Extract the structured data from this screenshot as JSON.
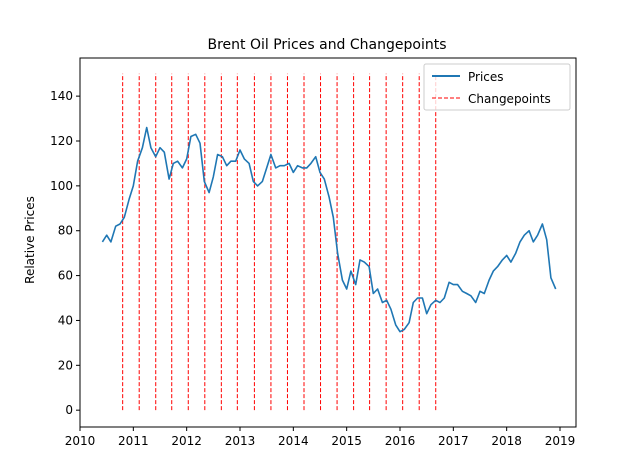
{
  "chart_data": {
    "type": "line",
    "title": "Brent Oil Prices and Changepoints",
    "xlabel": "",
    "ylabel": "Relative Prices",
    "xlim": [
      2010.0,
      2019.3
    ],
    "ylim": [
      -7.5,
      157
    ],
    "xticks": [
      2010,
      2011,
      2012,
      2013,
      2014,
      2015,
      2016,
      2017,
      2018,
      2019
    ],
    "yticks": [
      0,
      20,
      40,
      60,
      80,
      100,
      120,
      140
    ],
    "grid": false,
    "legend_position": "top-right",
    "colors": {
      "prices": "#1f77b4",
      "changepoints": "#ff0000"
    },
    "series": [
      {
        "name": "Prices",
        "style": "solid",
        "x": [
          2010.42,
          2010.5,
          2010.58,
          2010.67,
          2010.75,
          2010.83,
          2010.92,
          2011.0,
          2011.08,
          2011.17,
          2011.25,
          2011.33,
          2011.42,
          2011.5,
          2011.58,
          2011.67,
          2011.75,
          2011.83,
          2011.92,
          2012.0,
          2012.08,
          2012.17,
          2012.25,
          2012.33,
          2012.42,
          2012.5,
          2012.58,
          2012.67,
          2012.75,
          2012.83,
          2012.92,
          2013.0,
          2013.08,
          2013.17,
          2013.25,
          2013.33,
          2013.42,
          2013.5,
          2013.58,
          2013.67,
          2013.75,
          2013.83,
          2013.92,
          2014.0,
          2014.08,
          2014.17,
          2014.25,
          2014.33,
          2014.42,
          2014.5,
          2014.58,
          2014.67,
          2014.75,
          2014.83,
          2014.92,
          2015.0,
          2015.08,
          2015.17,
          2015.25,
          2015.33,
          2015.42,
          2015.5,
          2015.58,
          2015.67,
          2015.75,
          2015.83,
          2015.92,
          2016.0,
          2016.08,
          2016.17,
          2016.25,
          2016.33,
          2016.42,
          2016.5,
          2016.58,
          2016.67,
          2016.75,
          2016.83,
          2016.92,
          2017.0,
          2017.08,
          2017.17,
          2017.25,
          2017.33,
          2017.42,
          2017.5,
          2017.58,
          2017.67,
          2017.75,
          2017.83,
          2017.92,
          2018.0,
          2018.08,
          2018.17,
          2018.25,
          2018.33,
          2018.42,
          2018.5,
          2018.58,
          2018.67,
          2018.75,
          2018.83,
          2018.92
        ],
        "values": [
          75,
          78,
          75,
          82,
          83,
          86,
          94,
          100,
          111,
          117,
          126,
          117,
          113,
          117,
          115,
          103,
          110,
          111,
          108,
          112,
          122,
          123,
          119,
          102,
          97,
          104,
          114,
          113,
          109,
          111,
          111,
          116,
          112,
          110,
          102,
          100,
          102,
          108,
          114,
          108,
          109,
          109,
          110,
          106,
          109,
          108,
          108,
          110,
          113,
          106,
          103,
          95,
          86,
          70,
          58,
          54,
          62,
          56,
          67,
          66,
          64,
          52,
          54,
          48,
          49,
          45,
          38,
          35,
          36,
          39,
          48,
          50,
          50,
          43,
          47,
          49,
          48,
          50,
          57,
          56,
          56,
          53,
          52,
          51,
          48,
          53,
          52,
          58,
          62,
          64,
          67,
          69,
          66,
          70,
          75,
          78,
          80,
          75,
          78,
          83,
          76,
          59,
          54
        ]
      }
    ],
    "changepoints": {
      "name": "Changepoints",
      "style": "dashed",
      "x": [
        2010.8,
        2011.11,
        2011.42,
        2011.72,
        2012.03,
        2012.34,
        2012.65,
        2012.95,
        2013.27,
        2013.58,
        2013.89,
        2014.2,
        2014.51,
        2014.82,
        2015.13,
        2015.43,
        2015.74,
        2016.05,
        2016.36,
        2016.67
      ],
      "range": [
        0,
        150
      ]
    },
    "legend": [
      "Prices",
      "Changepoints"
    ]
  }
}
